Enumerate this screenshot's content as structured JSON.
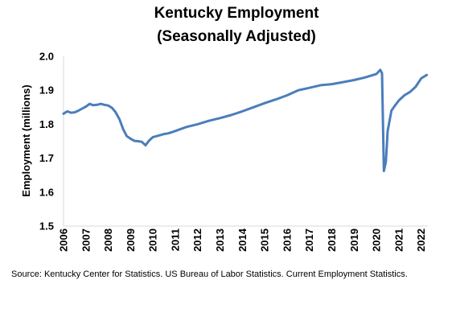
{
  "chart_data": {
    "type": "line",
    "title": "Kentucky Employment",
    "subtitle": "(Seasonally Adjusted)",
    "xlabel": "",
    "ylabel": "Employment (millions)",
    "ylim": [
      1.5,
      2.0
    ],
    "xlim": [
      2006,
      2022.3
    ],
    "y_ticks": [
      "1.5",
      "1.6",
      "1.7",
      "1.8",
      "1.9",
      "2.0"
    ],
    "x_ticks": [
      "2006",
      "2007",
      "2008",
      "2009",
      "2010",
      "2011",
      "2012",
      "2013",
      "2014",
      "2015",
      "2016",
      "2017",
      "2018",
      "2019",
      "2020",
      "2021",
      "2022"
    ],
    "grid": false,
    "legend": "none",
    "line_color": "#4a7ebb",
    "series": [
      {
        "x": [
          2006.0,
          2006.17,
          2006.33,
          2006.5,
          2006.67,
          2006.83,
          2007.0,
          2007.17,
          2007.33,
          2007.5,
          2007.67,
          2007.83,
          2008.0,
          2008.17,
          2008.33,
          2008.5,
          2008.67,
          2008.83,
          2009.0,
          2009.17,
          2009.33,
          2009.5,
          2009.67,
          2009.83,
          2010.0,
          2010.17,
          2010.33,
          2010.5,
          2010.67,
          2010.83,
          2011.0,
          2011.5,
          2012.0,
          2012.5,
          2013.0,
          2013.5,
          2014.0,
          2014.5,
          2015.0,
          2015.5,
          2016.0,
          2016.5,
          2017.0,
          2017.5,
          2018.0,
          2018.5,
          2019.0,
          2019.5,
          2020.0,
          2020.17,
          2020.25,
          2020.33,
          2020.42,
          2020.5,
          2020.67,
          2020.83,
          2021.0,
          2021.25,
          2021.5,
          2021.75,
          2022.0,
          2022.25
        ],
        "values": [
          1.831,
          1.838,
          1.834,
          1.835,
          1.84,
          1.846,
          1.852,
          1.86,
          1.856,
          1.857,
          1.86,
          1.857,
          1.855,
          1.848,
          1.835,
          1.815,
          1.785,
          1.765,
          1.757,
          1.751,
          1.75,
          1.748,
          1.738,
          1.752,
          1.762,
          1.765,
          1.768,
          1.771,
          1.773,
          1.776,
          1.78,
          1.792,
          1.8,
          1.81,
          1.818,
          1.827,
          1.838,
          1.85,
          1.862,
          1.873,
          1.885,
          1.9,
          1.907,
          1.915,
          1.918,
          1.924,
          1.93,
          1.938,
          1.948,
          1.96,
          1.95,
          1.662,
          1.69,
          1.78,
          1.84,
          1.855,
          1.87,
          1.885,
          1.895,
          1.91,
          1.935,
          1.945
        ]
      }
    ]
  },
  "source_note": "Source: Kentucky Center for Statistics. US Bureau of Labor Statistics. Current Employment Statistics."
}
